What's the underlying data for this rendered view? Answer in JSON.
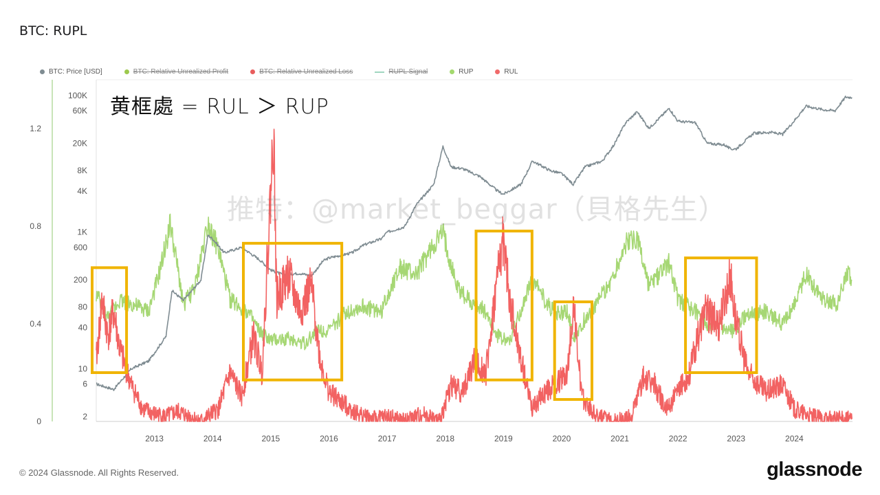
{
  "title": "BTC: RUPL",
  "footer": "© 2024 Glassnode. All Rights Reserved.",
  "brand": "glassnode",
  "annotation": "黄框處 = RUL ＞ RUP",
  "watermark": "推特：@market_beggar（貝格先生）",
  "legend": [
    {
      "label": "BTC: Price [USD]",
      "color": "#7f8c92",
      "style": "dot",
      "active": true
    },
    {
      "label": "BTC: Relative Unrealized Profit",
      "color": "#9dc94d",
      "style": "dot",
      "active": false
    },
    {
      "label": "BTC: Relative Unrealized Loss",
      "color": "#e85d5d",
      "style": "dot",
      "active": false
    },
    {
      "label": "RUPL Signal",
      "color": "#9fd6c0",
      "style": "dash",
      "active": false
    },
    {
      "label": "RUP",
      "color": "#a3d96e",
      "style": "dot",
      "active": true
    },
    {
      "label": "RUL",
      "color": "#f06a6a",
      "style": "dot",
      "active": true
    }
  ],
  "colors": {
    "price": "#7f8c92",
    "rup": "#a6d774",
    "rul": "#f26262",
    "highlight": "#f0b400",
    "axis_line": "#b6dba0"
  },
  "chart_data": {
    "type": "line",
    "x_range": [
      "2012-01-01",
      "2024-12-31"
    ],
    "x_ticks": [
      "2013",
      "2014",
      "2015",
      "2016",
      "2017",
      "2018",
      "2019",
      "2020",
      "2021",
      "2022",
      "2023",
      "2024"
    ],
    "x_tick_years": [
      2013,
      2014,
      2015,
      2016,
      2017,
      2018,
      2019,
      2020,
      2021,
      2022,
      2023,
      2024
    ],
    "left_axis": {
      "ticks": [
        "0",
        "0.4",
        "0.8",
        "1.2"
      ],
      "values": [
        0,
        0.4,
        0.8,
        1.2
      ],
      "range": [
        0,
        1.4
      ]
    },
    "price_axis": {
      "scale": "log",
      "ticks": [
        "2",
        "6",
        "10",
        "40",
        "80",
        "200",
        "600",
        "1K",
        "4K",
        "8K",
        "20K",
        "60K",
        "100K"
      ],
      "values": [
        2,
        6,
        10,
        40,
        80,
        200,
        600,
        1000,
        4000,
        8000,
        20000,
        60000,
        100000
      ]
    },
    "series": [
      {
        "name": "BTC: Price [USD]",
        "axis": "price",
        "points": [
          [
            2012.0,
            6
          ],
          [
            2012.3,
            5
          ],
          [
            2012.6,
            10
          ],
          [
            2012.9,
            13
          ],
          [
            2013.2,
            30
          ],
          [
            2013.3,
            140
          ],
          [
            2013.5,
            100
          ],
          [
            2013.8,
            200
          ],
          [
            2013.92,
            900
          ],
          [
            2014.0,
            800
          ],
          [
            2014.2,
            500
          ],
          [
            2014.5,
            600
          ],
          [
            2014.8,
            400
          ],
          [
            2015.0,
            280
          ],
          [
            2015.2,
            240
          ],
          [
            2015.5,
            250
          ],
          [
            2015.7,
            230
          ],
          [
            2015.9,
            380
          ],
          [
            2016.0,
            420
          ],
          [
            2016.4,
            500
          ],
          [
            2016.6,
            650
          ],
          [
            2016.9,
            800
          ],
          [
            2017.0,
            1000
          ],
          [
            2017.3,
            1200
          ],
          [
            2017.5,
            2500
          ],
          [
            2017.8,
            5000
          ],
          [
            2017.96,
            18000
          ],
          [
            2018.1,
            9000
          ],
          [
            2018.3,
            8500
          ],
          [
            2018.6,
            6500
          ],
          [
            2018.9,
            4000
          ],
          [
            2019.0,
            3600
          ],
          [
            2019.3,
            5000
          ],
          [
            2019.5,
            11000
          ],
          [
            2019.8,
            8000
          ],
          [
            2020.0,
            7200
          ],
          [
            2020.2,
            5000
          ],
          [
            2020.4,
            9000
          ],
          [
            2020.7,
            11000
          ],
          [
            2020.9,
            19000
          ],
          [
            2021.1,
            40000
          ],
          [
            2021.3,
            58000
          ],
          [
            2021.5,
            33000
          ],
          [
            2021.85,
            65000
          ],
          [
            2022.0,
            42000
          ],
          [
            2022.3,
            40000
          ],
          [
            2022.5,
            20000
          ],
          [
            2022.8,
            19000
          ],
          [
            2022.9,
            16500
          ],
          [
            2023.0,
            16600
          ],
          [
            2023.3,
            28000
          ],
          [
            2023.6,
            29000
          ],
          [
            2023.8,
            27000
          ],
          [
            2024.0,
            43000
          ],
          [
            2024.2,
            70000
          ],
          [
            2024.5,
            62000
          ],
          [
            2024.7,
            60000
          ],
          [
            2024.88,
            95000
          ],
          [
            2024.99,
            94000
          ]
        ]
      },
      {
        "name": "RUP",
        "axis": "left",
        "points": [
          [
            2012.0,
            0.52
          ],
          [
            2012.2,
            0.42
          ],
          [
            2012.4,
            0.5
          ],
          [
            2012.6,
            0.48
          ],
          [
            2012.9,
            0.45
          ],
          [
            2013.1,
            0.62
          ],
          [
            2013.27,
            0.81
          ],
          [
            2013.5,
            0.48
          ],
          [
            2013.7,
            0.55
          ],
          [
            2013.92,
            0.82
          ],
          [
            2014.1,
            0.7
          ],
          [
            2014.3,
            0.5
          ],
          [
            2014.6,
            0.45
          ],
          [
            2014.8,
            0.37
          ],
          [
            2015.0,
            0.33
          ],
          [
            2015.3,
            0.34
          ],
          [
            2015.6,
            0.32
          ],
          [
            2015.8,
            0.38
          ],
          [
            2016.0,
            0.37
          ],
          [
            2016.3,
            0.45
          ],
          [
            2016.6,
            0.47
          ],
          [
            2016.9,
            0.45
          ],
          [
            2017.2,
            0.63
          ],
          [
            2017.5,
            0.6
          ],
          [
            2017.8,
            0.72
          ],
          [
            2017.96,
            0.77
          ],
          [
            2018.2,
            0.55
          ],
          [
            2018.4,
            0.5
          ],
          [
            2018.7,
            0.45
          ],
          [
            2018.9,
            0.35
          ],
          [
            2019.1,
            0.33
          ],
          [
            2019.5,
            0.58
          ],
          [
            2019.7,
            0.5
          ],
          [
            2019.9,
            0.44
          ],
          [
            2020.1,
            0.45
          ],
          [
            2020.2,
            0.34
          ],
          [
            2020.4,
            0.42
          ],
          [
            2020.7,
            0.52
          ],
          [
            2020.9,
            0.6
          ],
          [
            2021.1,
            0.73
          ],
          [
            2021.3,
            0.75
          ],
          [
            2021.5,
            0.55
          ],
          [
            2021.85,
            0.65
          ],
          [
            2022.0,
            0.5
          ],
          [
            2022.3,
            0.45
          ],
          [
            2022.5,
            0.4
          ],
          [
            2022.8,
            0.38
          ],
          [
            2022.95,
            0.37
          ],
          [
            2023.2,
            0.44
          ],
          [
            2023.5,
            0.45
          ],
          [
            2023.8,
            0.4
          ],
          [
            2024.0,
            0.48
          ],
          [
            2024.2,
            0.6
          ],
          [
            2024.5,
            0.5
          ],
          [
            2024.75,
            0.48
          ],
          [
            2024.9,
            0.62
          ],
          [
            2024.99,
            0.58
          ]
        ]
      },
      {
        "name": "RUL",
        "axis": "left",
        "points": [
          [
            2012.0,
            0.25
          ],
          [
            2012.1,
            0.5
          ],
          [
            2012.2,
            0.35
          ],
          [
            2012.3,
            0.45
          ],
          [
            2012.4,
            0.3
          ],
          [
            2012.6,
            0.15
          ],
          [
            2012.8,
            0.05
          ],
          [
            2013.0,
            0.03
          ],
          [
            2013.2,
            0.02
          ],
          [
            2013.4,
            0.04
          ],
          [
            2013.6,
            0.02
          ],
          [
            2013.8,
            0.0
          ],
          [
            2014.1,
            0.05
          ],
          [
            2014.3,
            0.2
          ],
          [
            2014.5,
            0.1
          ],
          [
            2014.7,
            0.35
          ],
          [
            2014.85,
            0.2
          ],
          [
            2015.05,
            1.2
          ],
          [
            2015.1,
            0.5
          ],
          [
            2015.3,
            0.6
          ],
          [
            2015.5,
            0.45
          ],
          [
            2015.7,
            0.55
          ],
          [
            2015.85,
            0.25
          ],
          [
            2016.0,
            0.12
          ],
          [
            2016.2,
            0.08
          ],
          [
            2016.5,
            0.03
          ],
          [
            2016.8,
            0.01
          ],
          [
            2017.0,
            0.02
          ],
          [
            2017.3,
            0.0
          ],
          [
            2017.6,
            0.03
          ],
          [
            2017.9,
            0.0
          ],
          [
            2018.1,
            0.15
          ],
          [
            2018.3,
            0.12
          ],
          [
            2018.5,
            0.25
          ],
          [
            2018.7,
            0.2
          ],
          [
            2018.9,
            0.6
          ],
          [
            2019.0,
            0.75
          ],
          [
            2019.1,
            0.5
          ],
          [
            2019.3,
            0.25
          ],
          [
            2019.5,
            0.05
          ],
          [
            2019.7,
            0.12
          ],
          [
            2019.9,
            0.15
          ],
          [
            2020.1,
            0.2
          ],
          [
            2020.2,
            0.48
          ],
          [
            2020.35,
            0.1
          ],
          [
            2020.6,
            0.02
          ],
          [
            2020.9,
            0.0
          ],
          [
            2021.2,
            0.02
          ],
          [
            2021.4,
            0.18
          ],
          [
            2021.6,
            0.15
          ],
          [
            2021.8,
            0.05
          ],
          [
            2022.0,
            0.12
          ],
          [
            2022.2,
            0.2
          ],
          [
            2022.45,
            0.45
          ],
          [
            2022.7,
            0.4
          ],
          [
            2022.9,
            0.6
          ],
          [
            2023.0,
            0.4
          ],
          [
            2023.2,
            0.2
          ],
          [
            2023.5,
            0.12
          ],
          [
            2023.8,
            0.15
          ],
          [
            2024.0,
            0.05
          ],
          [
            2024.3,
            0.02
          ],
          [
            2024.6,
            0.01
          ],
          [
            2024.99,
            0.01
          ]
        ]
      }
    ],
    "highlights": [
      {
        "x_range": [
          2012.0,
          2012.45
        ],
        "y_range": [
          0.2,
          0.63
        ]
      },
      {
        "x_range": [
          2014.6,
          2016.15
        ],
        "y_range": [
          0.17,
          0.73
        ]
      },
      {
        "x_range": [
          2018.6,
          2019.42
        ],
        "y_range": [
          0.17,
          0.78
        ]
      },
      {
        "x_range": [
          2019.95,
          2020.45
        ],
        "y_range": [
          0.09,
          0.49
        ]
      },
      {
        "x_range": [
          2022.2,
          2023.28
        ],
        "y_range": [
          0.2,
          0.67
        ]
      }
    ],
    "grid": false,
    "legend_position": "top-left"
  }
}
